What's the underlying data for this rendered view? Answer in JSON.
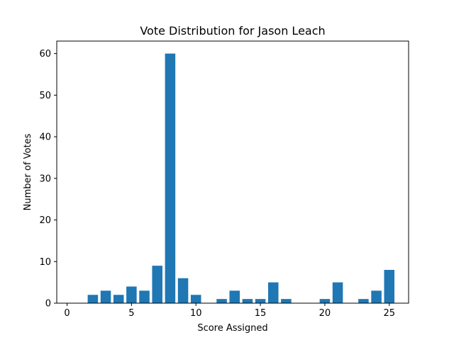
{
  "chart_data": {
    "type": "bar",
    "title": "Vote Distribution for Jason Leach",
    "xlabel": "Score Assigned",
    "ylabel": "Number of Votes",
    "xlim": [
      -0.8,
      26.5
    ],
    "ylim": [
      0,
      63
    ],
    "x_ticks": [
      0,
      5,
      10,
      15,
      20,
      25
    ],
    "y_ticks": [
      0,
      10,
      20,
      30,
      40,
      50,
      60
    ],
    "grid": false,
    "bar_color": "#1f77b4",
    "x": [
      2,
      3,
      4,
      5,
      6,
      7,
      8,
      9,
      10,
      12,
      13,
      14,
      15,
      16,
      17,
      20,
      21,
      23,
      24,
      25
    ],
    "values": [
      2,
      3,
      2,
      4,
      3,
      9,
      60,
      6,
      2,
      1,
      3,
      1,
      1,
      5,
      1,
      1,
      5,
      1,
      3,
      8
    ]
  }
}
